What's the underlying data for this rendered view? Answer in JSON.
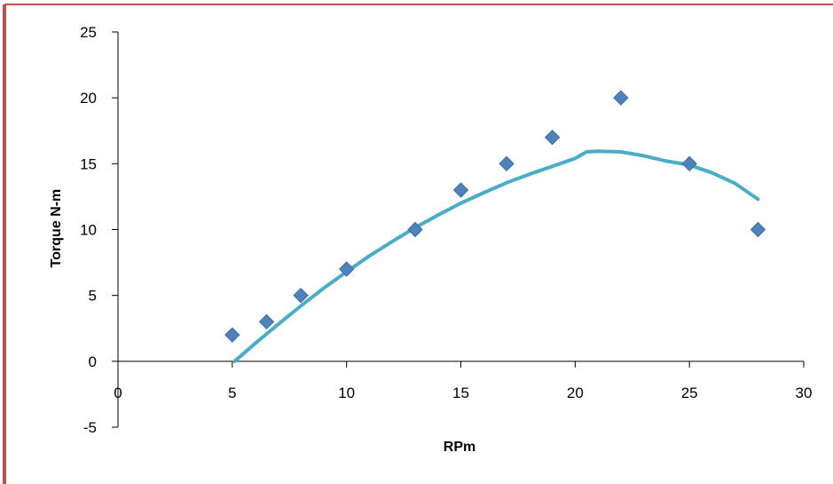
{
  "chart_data": {
    "type": "scatter",
    "xlabel": "RPm",
    "ylabel": "Torque  N-m",
    "xlim": [
      0,
      30
    ],
    "ylim": [
      -5,
      25
    ],
    "x_ticks": [
      0,
      5,
      10,
      15,
      20,
      25,
      30
    ],
    "y_ticks": [
      -5,
      0,
      5,
      10,
      15,
      20,
      25
    ],
    "grid": false,
    "legend": "none",
    "series": [
      {
        "x": [
          5,
          6.5,
          8,
          10,
          13,
          15,
          17,
          19,
          22,
          25,
          28
        ],
        "y": [
          2,
          3,
          5,
          7,
          10,
          13,
          15,
          17,
          20,
          15,
          10
        ]
      }
    ],
    "trendline": {
      "type": "polynomial-2",
      "x": [
        5.1,
        6,
        7,
        8,
        9,
        10,
        11,
        12,
        13,
        14,
        15,
        16,
        17,
        18,
        19,
        20,
        20.5,
        21,
        22,
        23,
        24,
        25,
        26,
        27,
        28
      ],
      "y": [
        0,
        1.35,
        2.8,
        4.2,
        5.55,
        6.8,
        8.0,
        9.1,
        10.15,
        11.1,
        12.0,
        12.8,
        13.55,
        14.2,
        14.8,
        15.4,
        15.9,
        15.95,
        15.9,
        15.6,
        15.2,
        14.9,
        14.3,
        13.5,
        12.3
      ]
    },
    "colors": {
      "marker": "#4F81BD",
      "marker_edge": "#3A6EA5",
      "trendline": "#4BACC6",
      "frame": "#C0504D"
    }
  }
}
